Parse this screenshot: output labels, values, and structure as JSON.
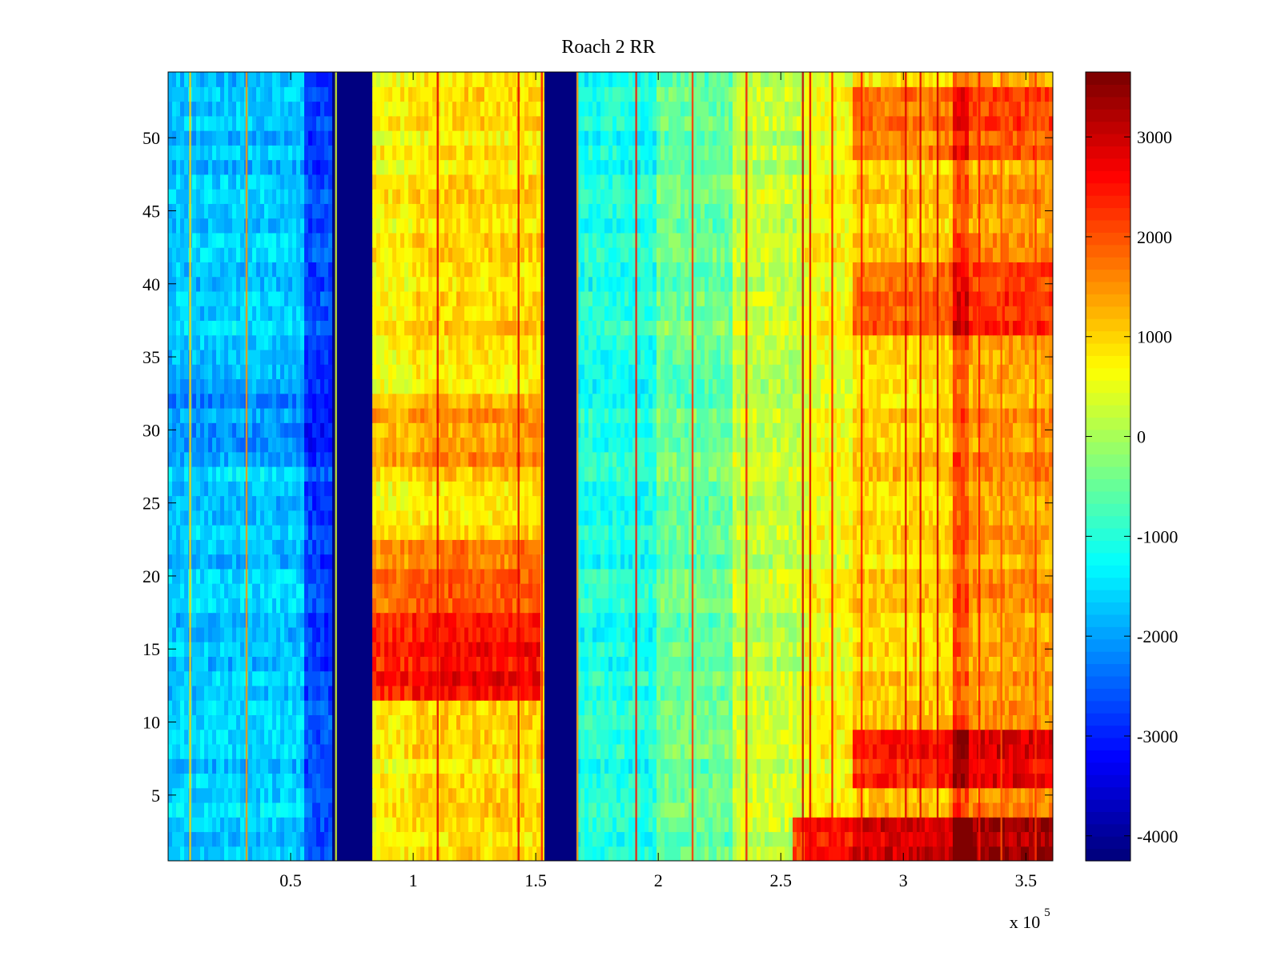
{
  "chart_data": {
    "type": "heatmap",
    "title": "Roach 2 RR",
    "xlabel": "",
    "ylabel": "",
    "xlim": [
      0,
      361000
    ],
    "ylim": [
      0.5,
      54.5
    ],
    "x_ticks": [
      50000,
      100000,
      150000,
      200000,
      250000,
      300000,
      350000
    ],
    "x_tick_labels": [
      "0.5",
      "1",
      "1.5",
      "2",
      "2.5",
      "3",
      "3.5"
    ],
    "x_exponent_label": "x 10",
    "x_exponent_power": "5",
    "y_ticks": [
      5,
      10,
      15,
      20,
      25,
      30,
      35,
      40,
      45,
      50
    ],
    "y_tick_labels": [
      "5",
      "10",
      "15",
      "20",
      "25",
      "30",
      "35",
      "40",
      "45",
      "50"
    ],
    "rows": 54,
    "colormap": "jet",
    "colorbar": {
      "range": [
        -4250,
        3650
      ],
      "ticks": [
        3000,
        2000,
        1000,
        0,
        -1000,
        -2000,
        -3000,
        -4000
      ],
      "tick_labels": [
        "3000",
        "2000",
        "1000",
        "0",
        "-1000",
        "-2000",
        "-3000",
        "-4000"
      ],
      "levels": 64
    },
    "column_bands": [
      {
        "x_start": 0,
        "x_end": 55000,
        "value": -1700
      },
      {
        "x_start": 55000,
        "x_end": 67000,
        "value": -2700
      },
      {
        "x_start": 67000,
        "x_end": 84000,
        "value": -4200
      },
      {
        "x_start": 84000,
        "x_end": 100000,
        "value": 700
      },
      {
        "x_start": 100000,
        "x_end": 152000,
        "value": 900
      },
      {
        "x_start": 152000,
        "x_end": 153500,
        "value": 800
      },
      {
        "x_start": 153500,
        "x_end": 166000,
        "value": -4200
      },
      {
        "x_start": 166000,
        "x_end": 200000,
        "value": -1100
      },
      {
        "x_start": 200000,
        "x_end": 230000,
        "value": -500
      },
      {
        "x_start": 230000,
        "x_end": 260000,
        "value": 200
      },
      {
        "x_start": 260000,
        "x_end": 280000,
        "value": 600
      },
      {
        "x_start": 280000,
        "x_end": 320000,
        "value": 1000
      },
      {
        "x_start": 320000,
        "x_end": 326000,
        "value": 2000
      },
      {
        "x_start": 326000,
        "x_end": 361000,
        "value": 1400
      }
    ],
    "row_features": [
      {
        "rows": [
          12,
          17
        ],
        "x_start": 84000,
        "x_end": 152000,
        "offset": 1700
      },
      {
        "rows": [
          18,
          22
        ],
        "x_start": 84000,
        "x_end": 152000,
        "offset": 900
      },
      {
        "rows": [
          28,
          32
        ],
        "x_start": 84000,
        "x_end": 152000,
        "offset": 500
      },
      {
        "rows": [
          1,
          3
        ],
        "x_start": 255000,
        "x_end": 361000,
        "offset": 1900
      },
      {
        "rows": [
          6,
          9
        ],
        "x_start": 280000,
        "x_end": 361000,
        "offset": 1400
      },
      {
        "rows": [
          37,
          41
        ],
        "x_start": 280000,
        "x_end": 361000,
        "offset": 800
      },
      {
        "rows": [
          49,
          53
        ],
        "x_start": 280000,
        "x_end": 361000,
        "offset": 700
      },
      {
        "rows": [
          28,
          32
        ],
        "x_start": 0,
        "x_end": 67000,
        "offset": -400
      }
    ],
    "vertical_lines": [
      {
        "x": 9000,
        "value": 1000
      },
      {
        "x": 32000,
        "value": 1500
      },
      {
        "x": 68500,
        "value": 400
      },
      {
        "x": 110000,
        "value": 2800
      },
      {
        "x": 143000,
        "value": 2800
      },
      {
        "x": 152500,
        "value": 2500
      },
      {
        "x": 167000,
        "value": 1600
      },
      {
        "x": 191000,
        "value": 2500
      },
      {
        "x": 214000,
        "value": 2200
      },
      {
        "x": 236000,
        "value": 2500
      },
      {
        "x": 259000,
        "value": 3000
      },
      {
        "x": 262000,
        "value": 2800
      },
      {
        "x": 271000,
        "value": 2500
      },
      {
        "x": 283000,
        "value": 2500
      },
      {
        "x": 301000,
        "value": 2800
      },
      {
        "x": 307000,
        "value": 2800
      },
      {
        "x": 314000,
        "value": 3000
      },
      {
        "x": 331000,
        "value": 2500
      },
      {
        "x": 340000,
        "value": 2000
      },
      {
        "x": 354000,
        "value": 2200
      }
    ]
  }
}
